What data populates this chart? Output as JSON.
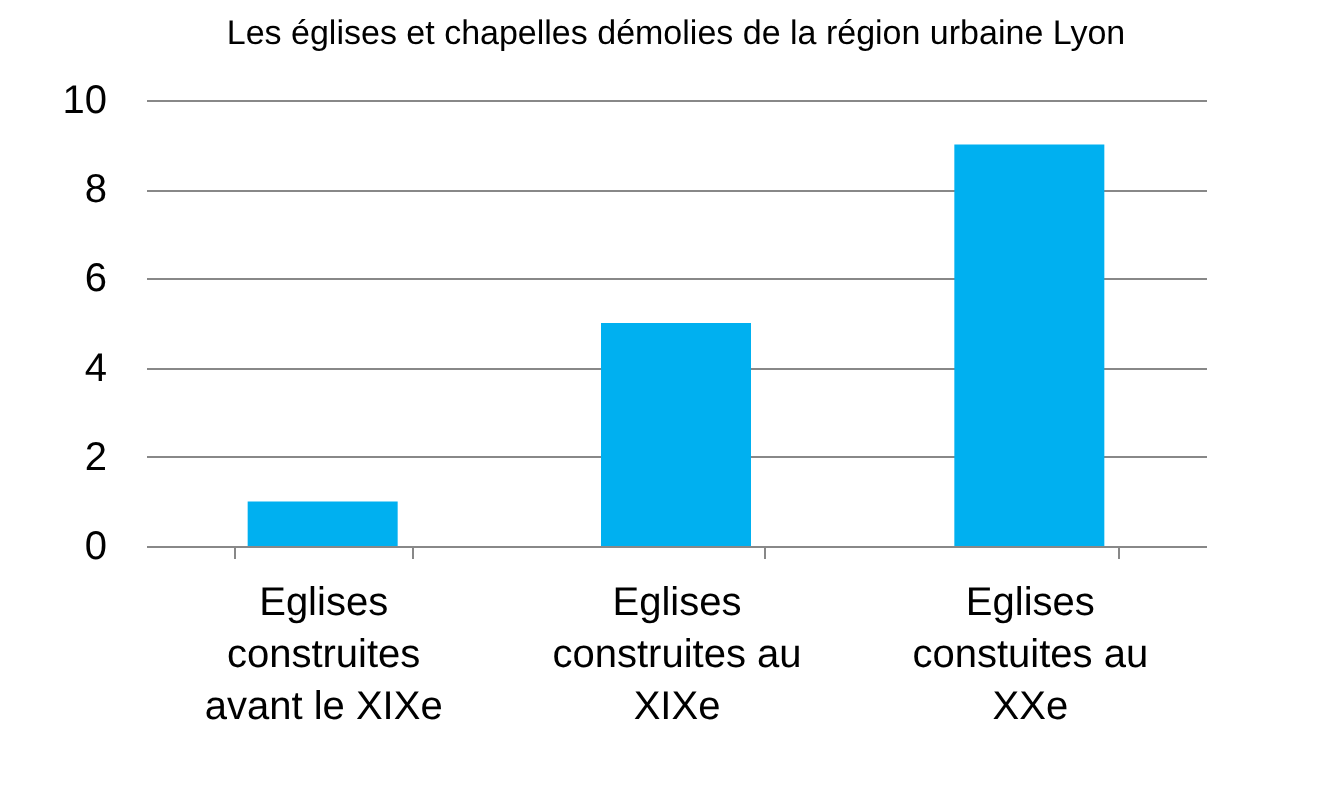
{
  "chart_data": {
    "type": "bar",
    "title": "Les églises et chapelles démolies de la région urbaine Lyon",
    "categories": [
      "Eglises construites avant le XIXe",
      "Eglises construites au XIXe",
      "Eglises constuites au XXe"
    ],
    "values": [
      1,
      5,
      9
    ],
    "color": "#00b0f0",
    "ylim": [
      0,
      10
    ],
    "yticks": [
      0,
      2,
      4,
      6,
      8,
      10
    ],
    "grid": "y"
  }
}
